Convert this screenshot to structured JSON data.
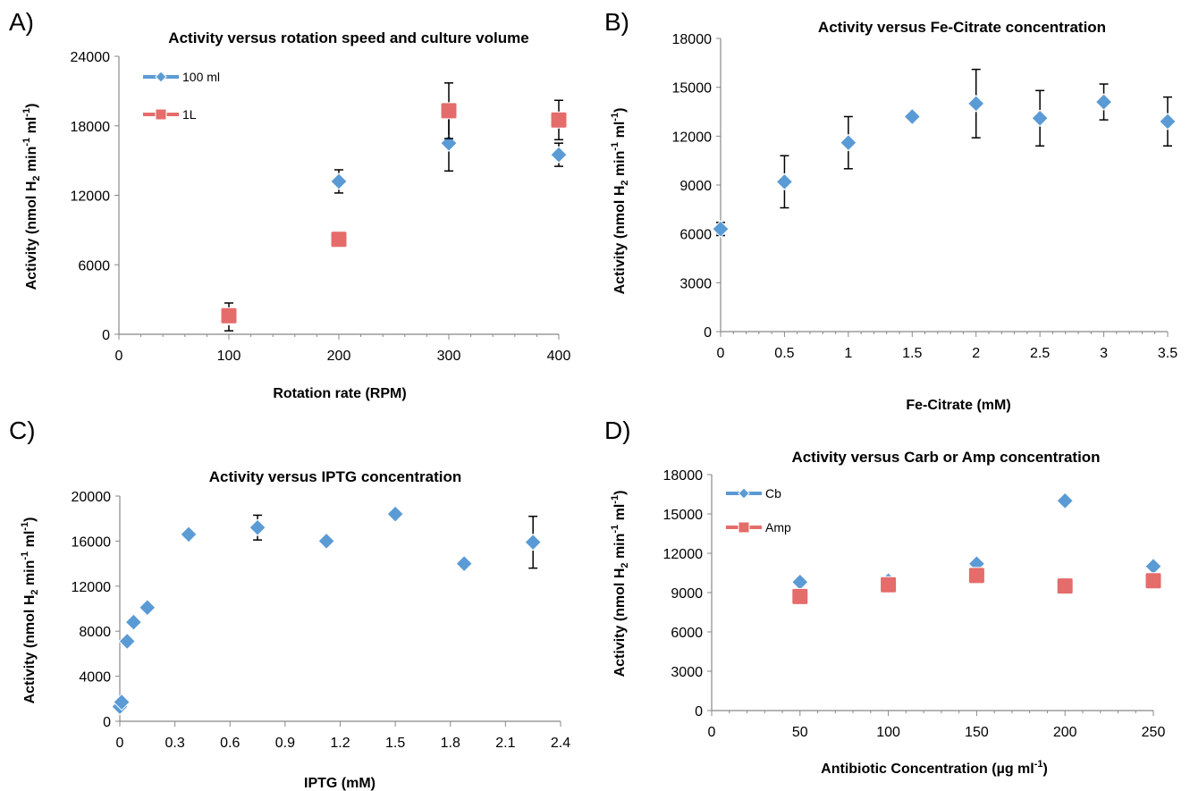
{
  "chart_data": [
    {
      "panel": "A)",
      "type": "scatter",
      "title": "Activity versus rotation speed and culture volume",
      "xlabel": "Rotation rate (RPM)",
      "ylabel": "Activity (nmol H2 min-1 ml-1)",
      "xlim": [
        0,
        400
      ],
      "ylim": [
        0,
        24000
      ],
      "xticks": [
        0,
        100,
        200,
        300,
        400
      ],
      "yticks": [
        0,
        6000,
        12000,
        18000,
        24000
      ],
      "grid": false,
      "legend": "top-left",
      "series": [
        {
          "name": "100 ml",
          "color": "#5B9BD5",
          "marker": "diamond",
          "x": [
            100,
            200,
            300,
            400
          ],
          "y": [
            1500,
            13200,
            16500,
            15500
          ],
          "err": [
            1200,
            1000,
            2400,
            1000
          ]
        },
        {
          "name": "1L",
          "color": "#E46C6A",
          "marker": "square",
          "x": [
            100,
            200,
            300,
            400
          ],
          "y": [
            1600,
            8200,
            19300,
            18500
          ],
          "err": [
            0,
            0,
            2400,
            1700
          ]
        }
      ]
    },
    {
      "panel": "B)",
      "type": "scatter",
      "title": "Activity versus Fe-Citrate concentration",
      "xlabel": "Fe-Citrate (mM)",
      "ylabel": "Activity (nmol H2 min-1 ml-1)",
      "xlim": [
        0,
        3.5
      ],
      "ylim": [
        0,
        18000
      ],
      "xticks": [
        0,
        0.5,
        1,
        1.5,
        2,
        2.5,
        3,
        3.5
      ],
      "yticks": [
        0,
        3000,
        6000,
        9000,
        12000,
        15000,
        18000
      ],
      "grid": false,
      "series": [
        {
          "color": "#5B9BD5",
          "marker": "diamond",
          "x": [
            0,
            0.5,
            1,
            1.5,
            2,
            2.5,
            3,
            3.5
          ],
          "y": [
            6300,
            9200,
            11600,
            13200,
            14000,
            13100,
            14100,
            12900
          ],
          "err": [
            400,
            1600,
            1600,
            0,
            2100,
            1700,
            1100,
            1500
          ]
        }
      ]
    },
    {
      "panel": "C)",
      "type": "scatter",
      "title": "Activity versus IPTG concentration",
      "xlabel": "IPTG (mM)",
      "ylabel": "Activity (nmol H2 min-1 ml-1)",
      "xlim": [
        0,
        2.4
      ],
      "ylim": [
        0,
        20000
      ],
      "xticks": [
        0,
        0.3,
        0.6,
        0.9,
        1.2,
        1.5,
        1.8,
        2.1,
        2.4
      ],
      "yticks": [
        0,
        4000,
        8000,
        12000,
        16000,
        20000
      ],
      "grid": false,
      "series": [
        {
          "color": "#5B9BD5",
          "marker": "diamond",
          "x": [
            0,
            0.01,
            0.04,
            0.075,
            0.15,
            0.375,
            0.75,
            1.125,
            1.5,
            1.875,
            2.25
          ],
          "y": [
            1300,
            1700,
            7100,
            8800,
            10100,
            16600,
            17200,
            16000,
            18400,
            14000,
            15900
          ],
          "err": [
            0,
            0,
            0,
            0,
            0,
            0,
            1100,
            0,
            0,
            0,
            2300
          ]
        }
      ]
    },
    {
      "panel": "D)",
      "type": "scatter",
      "title": "Activity versus Carb or Amp concentration",
      "xlabel": "Antibiotic Concentration (µg ml-1)",
      "ylabel": "Activity (nmol H2 min-1 ml-1)",
      "xlim": [
        0,
        250
      ],
      "ylim": [
        0,
        18000
      ],
      "xticks": [
        0,
        50,
        100,
        150,
        200,
        250
      ],
      "yticks": [
        0,
        3000,
        6000,
        9000,
        12000,
        15000,
        18000
      ],
      "grid": false,
      "legend": "top-left",
      "series": [
        {
          "name": "Cb",
          "color": "#5B9BD5",
          "marker": "diamond",
          "x": [
            50,
            100,
            150,
            200,
            250
          ],
          "y": [
            9800,
            9900,
            11200,
            16000,
            11000
          ]
        },
        {
          "name": "Amp",
          "color": "#E46C6A",
          "marker": "square",
          "x": [
            50,
            100,
            150,
            200,
            250
          ],
          "y": [
            8700,
            9600,
            10300,
            9500,
            9900
          ]
        }
      ]
    }
  ]
}
